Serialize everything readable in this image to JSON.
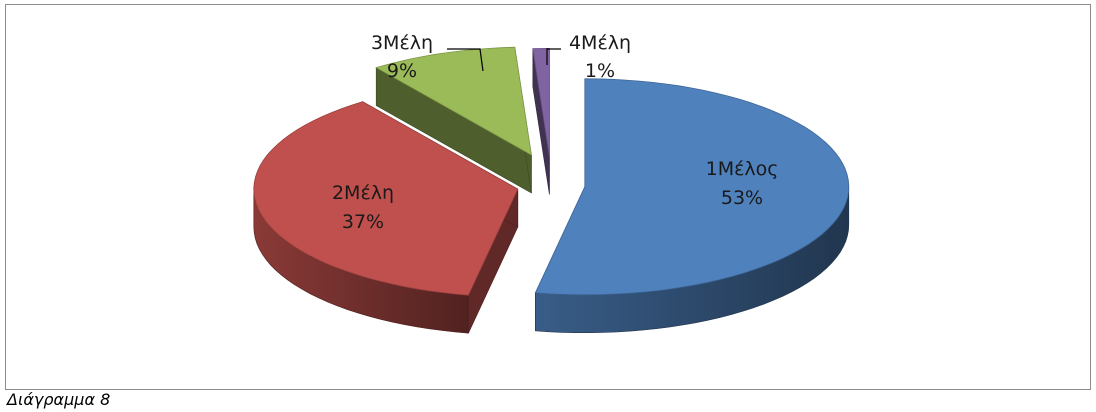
{
  "caption": "Διάγραμμα 8",
  "chart_data": {
    "type": "pie",
    "subtype": "3d-exploded",
    "slices": [
      {
        "category": "1Μέλος",
        "value": 53,
        "label": "53%",
        "color": "#4f81bd"
      },
      {
        "category": "2Μέλη",
        "value": 37,
        "label": "37%",
        "color": "#c0504d"
      },
      {
        "category": "3Μέλη",
        "value": 9,
        "label": "9%",
        "color": "#9bbb59"
      },
      {
        "category": "4Μέλη",
        "value": 1,
        "label": "1%",
        "color": "#8064a2"
      }
    ],
    "legend": "none"
  }
}
